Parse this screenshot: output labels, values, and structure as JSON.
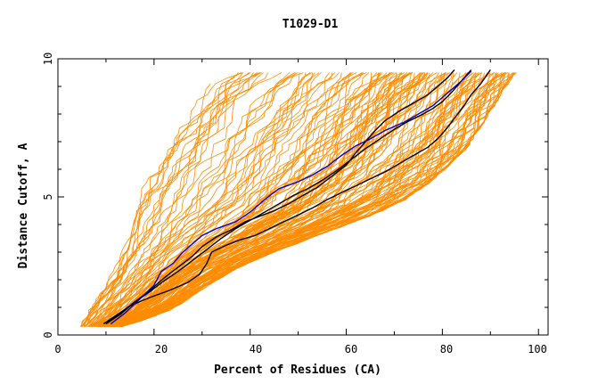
{
  "chart_data": {
    "type": "line",
    "title": "T1029-D1",
    "xlabel": "Percent of Residues (CA)",
    "ylabel": "Distance Cutoff, A",
    "xlim": [
      0,
      102
    ],
    "ylim": [
      0,
      10
    ],
    "x_ticks": [
      "0",
      "20",
      "40",
      "60",
      "80",
      "100"
    ],
    "y_ticks": [
      "0",
      "5",
      "10"
    ],
    "grid": false,
    "colors": {
      "background_models": "#ff8c00",
      "highlight_black": "#000000",
      "highlight_blue": "#0000cd"
    },
    "envelope": {
      "left": [
        [
          4.5,
          0.3
        ],
        [
          6,
          0.9
        ],
        [
          8,
          1.4
        ],
        [
          10,
          1.9
        ],
        [
          12,
          2.6
        ],
        [
          13,
          3.2
        ],
        [
          14,
          3.9
        ],
        [
          15,
          4.5
        ],
        [
          16,
          5.0
        ],
        [
          18,
          5.6
        ],
        [
          20,
          6.3
        ],
        [
          22,
          6.9
        ],
        [
          25,
          7.5
        ],
        [
          27,
          8.1
        ],
        [
          29,
          8.6
        ],
        [
          31,
          9.0
        ],
        [
          34,
          9.4
        ],
        [
          36,
          9.6
        ]
      ],
      "right": [
        [
          13,
          0.3
        ],
        [
          19,
          0.6
        ],
        [
          23,
          0.9
        ],
        [
          27,
          1.3
        ],
        [
          31,
          1.8
        ],
        [
          36,
          2.3
        ],
        [
          42,
          2.8
        ],
        [
          48,
          3.2
        ],
        [
          54,
          3.6
        ],
        [
          60,
          4.0
        ],
        [
          66,
          4.4
        ],
        [
          72,
          4.9
        ],
        [
          77,
          5.5
        ],
        [
          81,
          6.1
        ],
        [
          85,
          6.8
        ],
        [
          88,
          7.6
        ],
        [
          91,
          8.4
        ],
        [
          93,
          9.0
        ],
        [
          95.5,
          9.6
        ]
      ]
    },
    "series": [
      {
        "color": "blue",
        "points": [
          [
            11,
            0.4
          ],
          [
            14,
            0.8
          ],
          [
            17,
            1.3
          ],
          [
            20,
            1.8
          ],
          [
            21.5,
            2.3
          ],
          [
            24,
            2.6
          ],
          [
            26,
            3.0
          ],
          [
            28,
            3.3
          ],
          [
            30,
            3.6
          ],
          [
            33,
            3.85
          ],
          [
            37,
            4.1
          ],
          [
            40,
            4.45
          ],
          [
            43,
            4.9
          ],
          [
            46,
            5.3
          ],
          [
            50,
            5.55
          ],
          [
            53,
            5.8
          ],
          [
            56,
            6.1
          ],
          [
            59,
            6.5
          ],
          [
            62,
            6.85
          ],
          [
            65,
            7.1
          ],
          [
            68,
            7.4
          ],
          [
            72,
            7.7
          ],
          [
            75,
            8.0
          ],
          [
            78,
            8.3
          ],
          [
            80,
            8.6
          ],
          [
            82,
            8.9
          ],
          [
            84,
            9.2
          ],
          [
            86,
            9.55
          ]
        ]
      },
      {
        "color": "black",
        "points": [
          [
            10,
            0.4
          ],
          [
            13,
            0.75
          ],
          [
            16,
            1.2
          ],
          [
            19,
            1.6
          ],
          [
            22,
            2.05
          ],
          [
            25,
            2.45
          ],
          [
            28,
            2.85
          ],
          [
            30,
            3.2
          ],
          [
            33,
            3.55
          ],
          [
            36,
            3.8
          ],
          [
            39,
            4.1
          ],
          [
            42,
            4.3
          ],
          [
            45,
            4.5
          ],
          [
            48,
            4.75
          ],
          [
            51,
            5.05
          ],
          [
            54,
            5.35
          ],
          [
            57,
            5.75
          ],
          [
            60,
            6.15
          ],
          [
            62,
            6.6
          ],
          [
            64,
            7.0
          ],
          [
            66,
            7.4
          ],
          [
            68,
            7.75
          ],
          [
            71,
            8.1
          ],
          [
            74,
            8.4
          ],
          [
            77,
            8.7
          ],
          [
            79,
            9.0
          ],
          [
            81,
            9.3
          ],
          [
            82.5,
            9.6
          ]
        ]
      },
      {
        "color": "black",
        "points": [
          [
            9.5,
            0.4
          ],
          [
            12,
            0.7
          ],
          [
            15,
            1.05
          ],
          [
            19,
            1.35
          ],
          [
            23,
            1.6
          ],
          [
            27,
            1.9
          ],
          [
            29.5,
            2.2
          ],
          [
            31,
            2.6
          ],
          [
            32,
            3.0
          ],
          [
            35,
            3.25
          ],
          [
            38,
            3.45
          ],
          [
            41,
            3.6
          ],
          [
            44,
            3.85
          ],
          [
            47,
            4.1
          ],
          [
            50,
            4.35
          ],
          [
            53,
            4.6
          ],
          [
            56,
            4.9
          ],
          [
            59,
            5.15
          ],
          [
            62,
            5.4
          ],
          [
            65,
            5.65
          ],
          [
            68,
            5.9
          ],
          [
            71,
            6.2
          ],
          [
            74,
            6.5
          ],
          [
            77,
            6.8
          ],
          [
            79,
            7.1
          ],
          [
            81,
            7.5
          ],
          [
            83,
            7.95
          ],
          [
            84.5,
            8.3
          ],
          [
            86,
            8.7
          ],
          [
            88,
            9.1
          ],
          [
            90,
            9.6
          ]
        ]
      },
      {
        "color": "black",
        "points": [
          [
            10,
            0.4
          ],
          [
            13,
            0.8
          ],
          [
            16,
            1.2
          ],
          [
            19,
            1.55
          ],
          [
            22,
            1.95
          ],
          [
            25,
            2.3
          ],
          [
            28,
            2.7
          ],
          [
            31,
            3.1
          ],
          [
            34,
            3.5
          ],
          [
            37,
            3.85
          ],
          [
            40,
            4.15
          ],
          [
            43,
            4.45
          ],
          [
            46,
            4.75
          ],
          [
            49,
            5.05
          ],
          [
            52,
            5.3
          ],
          [
            55,
            5.6
          ],
          [
            58,
            5.95
          ],
          [
            61,
            6.35
          ],
          [
            64,
            6.75
          ],
          [
            67,
            7.1
          ],
          [
            70,
            7.45
          ],
          [
            73,
            7.75
          ],
          [
            76,
            8.0
          ],
          [
            78,
            8.2
          ],
          [
            80,
            8.45
          ],
          [
            82,
            8.8
          ],
          [
            84,
            9.2
          ],
          [
            86,
            9.6
          ]
        ]
      }
    ]
  }
}
